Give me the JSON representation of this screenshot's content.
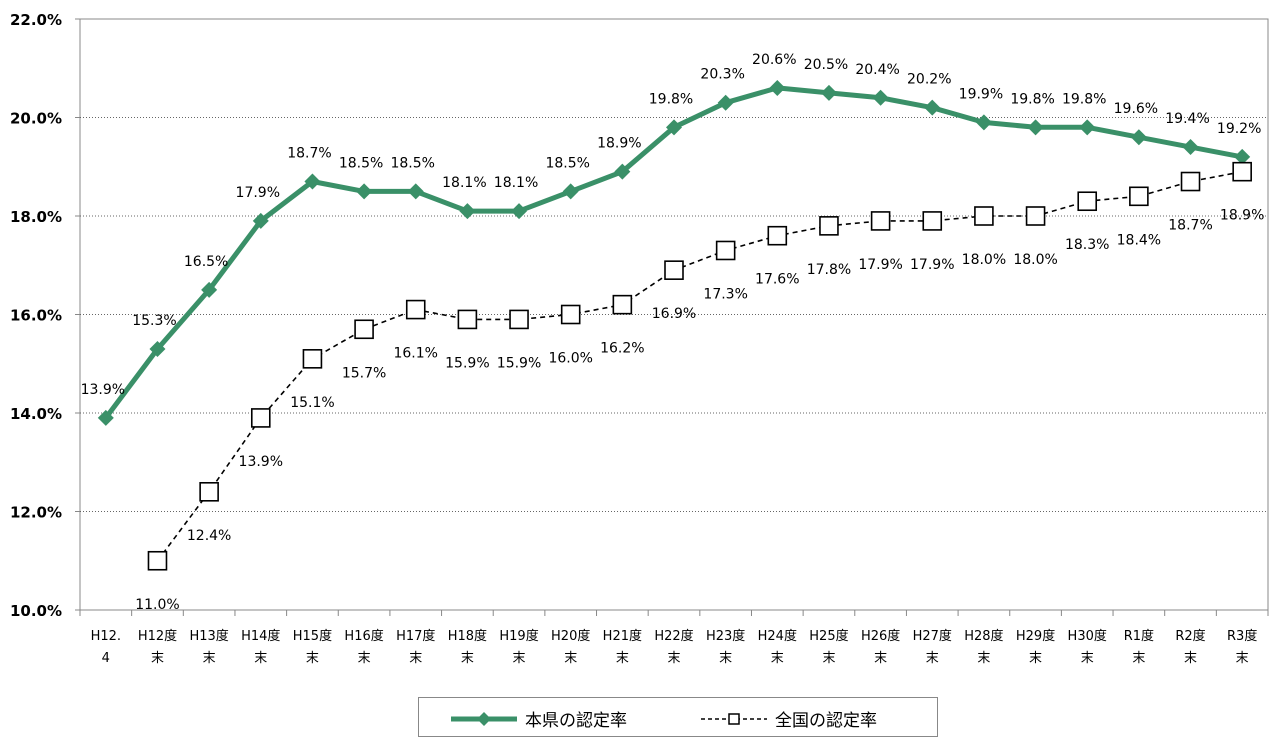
{
  "chart_data": {
    "type": "line",
    "categories": [
      [
        "H12.",
        "4"
      ],
      [
        "H12度",
        "末"
      ],
      [
        "H13度",
        "末"
      ],
      [
        "H14度",
        "末"
      ],
      [
        "H15度",
        "末"
      ],
      [
        "H16度",
        "末"
      ],
      [
        "H17度",
        "末"
      ],
      [
        "H18度",
        "末"
      ],
      [
        "H19度",
        "末"
      ],
      [
        "H20度",
        "末"
      ],
      [
        "H21度",
        "末"
      ],
      [
        "H22度",
        "末"
      ],
      [
        "H23度",
        "末"
      ],
      [
        "H24度",
        "末"
      ],
      [
        "H25度",
        "末"
      ],
      [
        "H26度",
        "末"
      ],
      [
        "H27度",
        "末"
      ],
      [
        "H28度",
        "末"
      ],
      [
        "H29度",
        "末"
      ],
      [
        "H30度",
        "末"
      ],
      [
        "R1度",
        "末"
      ],
      [
        "R2度",
        "末"
      ],
      [
        "R3度",
        "末"
      ]
    ],
    "y_ticks": [
      "10.0%",
      "12.0%",
      "14.0%",
      "16.0%",
      "18.0%",
      "20.0%",
      "22.0%"
    ],
    "ylim": [
      10,
      22
    ],
    "grid": "horizontal dotted",
    "legend_position": "bottom",
    "series": [
      {
        "name": "本県の認定率",
        "color": "#3a9068",
        "marker": "diamond",
        "values": [
          13.9,
          15.3,
          16.5,
          17.9,
          18.7,
          18.5,
          18.5,
          18.1,
          18.1,
          18.5,
          18.9,
          19.8,
          20.3,
          20.6,
          20.5,
          20.4,
          20.2,
          19.9,
          19.8,
          19.8,
          19.6,
          19.4,
          19.2
        ],
        "labels": [
          "13.9%",
          "15.3%",
          "16.5%",
          "17.9%",
          "18.7%",
          "18.5%",
          "18.5%",
          "18.1%",
          "18.1%",
          "18.5%",
          "18.9%",
          "19.8%",
          "20.3%",
          "20.6%",
          "20.5%",
          "20.4%",
          "20.2%",
          "19.9%",
          "19.8%",
          "19.8%",
          "19.6%",
          "19.4%",
          "19.2%"
        ]
      },
      {
        "name": "全国の認定率",
        "color": "#000000",
        "marker": "square",
        "values": [
          null,
          11.0,
          12.4,
          13.9,
          15.1,
          15.7,
          16.1,
          15.9,
          15.9,
          16.0,
          16.2,
          16.9,
          17.3,
          17.6,
          17.8,
          17.9,
          17.9,
          18.0,
          18.0,
          18.3,
          18.4,
          18.7,
          18.9
        ],
        "labels": [
          null,
          "11.0%",
          "12.4%",
          "13.9%",
          "15.1%",
          "15.7%",
          "16.1%",
          "15.9%",
          "15.9%",
          "16.0%",
          "16.2%",
          "16.9%",
          "17.3%",
          "17.6%",
          "17.8%",
          "17.9%",
          "17.9%",
          "18.0%",
          "18.0%",
          "18.3%",
          "18.4%",
          "18.7%",
          "18.9%"
        ]
      }
    ]
  },
  "legend": {
    "series1": "本県の認定率",
    "series2": "全国の認定率"
  }
}
